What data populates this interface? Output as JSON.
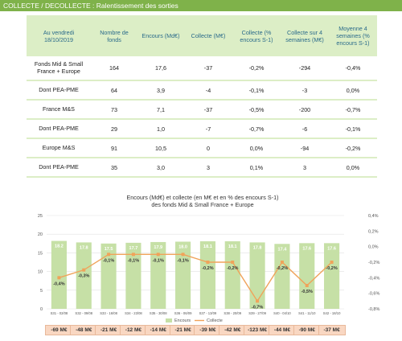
{
  "header": {
    "title": "COLLECTE / DECOLLECTE : Ralentissement des sorties"
  },
  "table": {
    "columns": [
      "Au vendredi 18/10/2019",
      "Nombre de fonds",
      "Encours (Md€)",
      "Collecte (M€)",
      "Collecte (% encours S-1)",
      "Collecte sur 4 semaines (M€)",
      "Moyenne 4 semaines (% encours S-1)"
    ],
    "rows": [
      [
        "Fonds Mid & Small France + Europe",
        "164",
        "17,6",
        "-37",
        "-0,2%",
        "-294",
        "-0,4%"
      ],
      [
        "Dont PEA-PME",
        "64",
        "3,9",
        "-4",
        "-0,1%",
        "-3",
        "0,0%"
      ],
      [
        "France M&S",
        "73",
        "7,1",
        "-37",
        "-0,5%",
        "-200",
        "-0,7%"
      ],
      [
        "Dont PEA-PME",
        "29",
        "1,0",
        "-7",
        "-0,7%",
        "-6",
        "-0,1%"
      ],
      [
        "Europe M&S",
        "91",
        "10,5",
        "0",
        "0,0%",
        "-94",
        "-0,2%"
      ],
      [
        "Dont PEA-PME",
        "35",
        "3,0",
        "3",
        "0,1%",
        "3",
        "0,0%"
      ]
    ]
  },
  "chart_data": {
    "type": "bar",
    "title": "Encours (Md€) et collecte (en M€ et en % des encours S-1)",
    "subtitle": "des fonds Mid & Small France + Europe",
    "categories": [
      "S31 - 02/08",
      "S32 - 09/08",
      "S33 - 16/08",
      "S34 - 23/08",
      "S35 - 30/08",
      "S36 - 06/09",
      "S37 - 13/09",
      "S38 - 20/09",
      "S39 - 27/09",
      "S40 - 04/10",
      "S41 - 11/10",
      "S42 - 18/10"
    ],
    "series": [
      {
        "name": "Encours",
        "type": "bar",
        "axis": "left",
        "values": [
          18.2,
          17.8,
          17.5,
          17.7,
          17.9,
          18.0,
          18.1,
          18.1,
          17.8,
          17.4,
          17.6,
          17.6
        ],
        "labels": [
          "18.2",
          "17.8",
          "17.5",
          "17.7",
          "17.9",
          "18.0",
          "18.1",
          "18.1",
          "17.8",
          "17.4",
          "17.6",
          "17.6"
        ],
        "color": "#c6e0a6"
      },
      {
        "name": "Collecte",
        "type": "line",
        "axis": "right",
        "values": [
          -0.4,
          -0.3,
          -0.1,
          -0.1,
          -0.1,
          -0.1,
          -0.2,
          -0.2,
          -0.7,
          -0.2,
          -0.5,
          -0.2
        ],
        "labels": [
          "-0,4%",
          "-0,3%",
          "-0,1%",
          "-0,1%",
          "-0,1%",
          "-0,1%",
          "-0,2%",
          "-0,2%",
          "-0,7%",
          "-0,2%",
          "-0,5%",
          "-0,2%"
        ],
        "color": "#f0a35a"
      }
    ],
    "ylim_left": [
      0,
      25
    ],
    "yticks_left": [
      "0",
      "5",
      "10",
      "15",
      "20",
      "25"
    ],
    "ylim_right": [
      -0.8,
      0.4
    ],
    "yticks_right": [
      "-0,8%",
      "-0,6%",
      "-0,4%",
      "-0,2%",
      "0,0%",
      "0,2%",
      "0,4%"
    ],
    "legend_position": "bottom",
    "flows_meur": [
      "-69 M€",
      "-48 M€",
      "-21 M€",
      "-12 M€",
      "-14 M€",
      "-21 M€",
      "-39 M€",
      "-42 M€",
      "-123 M€",
      "-44 M€",
      "-90 M€",
      "-37 M€"
    ]
  }
}
